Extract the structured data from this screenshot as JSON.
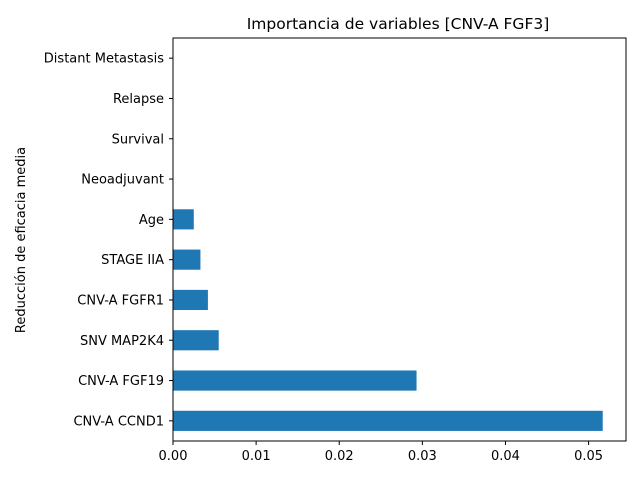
{
  "chart_data": {
    "type": "bar",
    "orientation": "horizontal",
    "title": "Importancia de variables [CNV-A FGF3]",
    "xlabel": "",
    "ylabel": "Reducción de eficacia media",
    "categories": [
      "CNV-A CCND1",
      "CNV-A FGF19",
      "SNV MAP2K4",
      "CNV-A FGFR1",
      "STAGE IIA",
      "Age",
      "Neoadjuvant",
      "Survival",
      "Relapse",
      "Distant Metastasis"
    ],
    "values": [
      0.0517,
      0.0293,
      0.0055,
      0.0042,
      0.0033,
      0.0025,
      0.0,
      0.0,
      0.0,
      0.0
    ],
    "xlim": [
      0.0,
      0.0545
    ],
    "xticks": [
      0.0,
      0.01,
      0.02,
      0.03,
      0.04,
      0.05
    ],
    "xtick_labels": [
      "0.00",
      "0.01",
      "0.02",
      "0.03",
      "0.04",
      "0.05"
    ],
    "bar_color": "#1f77b4",
    "grid": false,
    "legend": "none"
  }
}
